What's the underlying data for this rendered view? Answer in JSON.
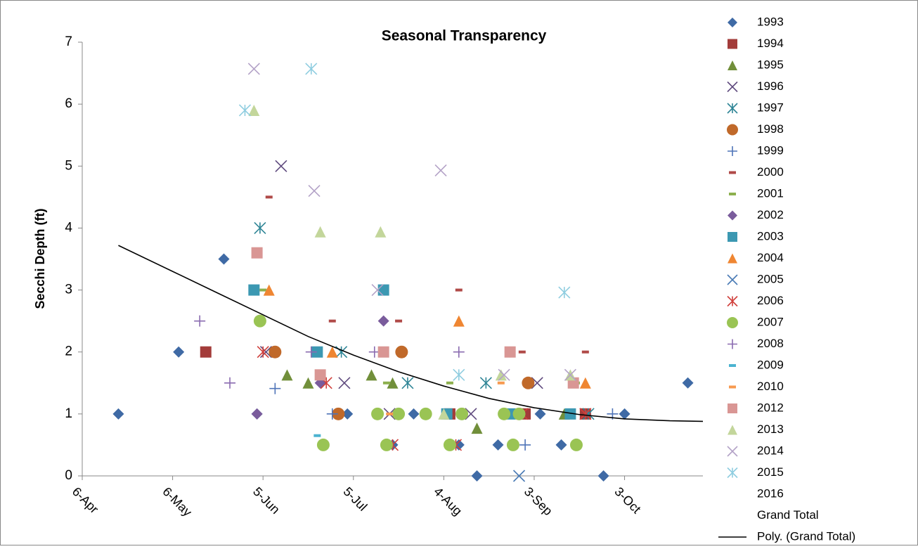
{
  "chart_data": {
    "type": "scatter",
    "title": "Seasonal Transparency",
    "y_label": "Secchi Depth (ft)",
    "xlim": [
      96,
      302
    ],
    "xticks": [
      {
        "value": 96,
        "label": "6-Apr"
      },
      {
        "value": 126,
        "label": "6-May"
      },
      {
        "value": 156,
        "label": "5-Jun"
      },
      {
        "value": 186,
        "label": "5-Jul"
      },
      {
        "value": 216,
        "label": "4-Aug"
      },
      {
        "value": 246,
        "label": "3-Sep"
      },
      {
        "value": 276,
        "label": "3-Oct"
      }
    ],
    "ylim": [
      0,
      7
    ],
    "yticks": [
      0,
      1,
      2,
      3,
      4,
      5,
      6,
      7
    ],
    "series": [
      {
        "name": "1993",
        "color": "#3f6aa5",
        "marker": "diamond",
        "x": [
          108,
          128,
          143,
          154,
          184,
          199,
          206,
          221,
          227,
          234,
          248,
          255,
          269,
          276,
          297
        ],
        "y": [
          1,
          2,
          3.5,
          1,
          1,
          0.5,
          1,
          0.5,
          0,
          0.5,
          1,
          0.5,
          0,
          1,
          1.5
        ]
      },
      {
        "name": "1994",
        "color": "#a33c3a",
        "marker": "square",
        "x": [
          137,
          218,
          243,
          263
        ],
        "y": [
          2,
          1,
          1,
          1
        ]
      },
      {
        "name": "1995",
        "color": "#718f3a",
        "marker": "triangle",
        "x": [
          164,
          171,
          192,
          199,
          227,
          256
        ],
        "y": [
          1.63,
          1.5,
          1.63,
          1.5,
          0.77,
          1
        ]
      },
      {
        "name": "1996",
        "color": "#5f4a7e",
        "marker": "x",
        "x": [
          157,
          162,
          183,
          198,
          225,
          247
        ],
        "y": [
          2,
          5,
          1.5,
          1,
          1,
          1.5
        ]
      },
      {
        "name": "1997",
        "color": "#2f8596",
        "marker": "asterisk",
        "x": [
          155,
          182,
          204,
          230,
          264
        ],
        "y": [
          4,
          2,
          1.5,
          1.5,
          1
        ]
      },
      {
        "name": "1998",
        "color": "#c0692a",
        "marker": "circle",
        "x": [
          160,
          181,
          202,
          244
        ],
        "y": [
          2,
          1,
          2,
          1.5
        ]
      },
      {
        "name": "1999",
        "color": "#4f74b8",
        "marker": "plus",
        "x": [
          160,
          179,
          243,
          272
        ],
        "y": [
          1.41,
          1,
          0.5,
          1
        ]
      },
      {
        "name": "2000",
        "color": "#b04a48",
        "marker": "dash",
        "x": [
          158,
          179,
          201,
          221,
          242,
          263
        ],
        "y": [
          4.5,
          2.5,
          2.5,
          3,
          2,
          2
        ]
      },
      {
        "name": "2001",
        "color": "#8db04e",
        "marker": "dash",
        "x": [
          156,
          197,
          218,
          260
        ],
        "y": [
          3,
          1.5,
          1.5,
          1.5
        ]
      },
      {
        "name": "2002",
        "color": "#7a5c9c",
        "marker": "diamond",
        "x": [
          154,
          175,
          196,
          238
        ],
        "y": [
          1,
          1.5,
          2.5,
          2
        ]
      },
      {
        "name": "2003",
        "color": "#3c98b2",
        "marker": "square",
        "x": [
          153,
          174,
          196,
          217,
          238,
          258
        ],
        "y": [
          3,
          2,
          3,
          1,
          1,
          1
        ]
      },
      {
        "name": "2004",
        "color": "#ef8632",
        "marker": "triangle",
        "x": [
          158,
          179,
          221,
          263
        ],
        "y": [
          3,
          2,
          2.5,
          1.5
        ]
      },
      {
        "name": "2005",
        "color": "#4a7bb5",
        "marker": "x",
        "x": [
          241
        ],
        "y": [
          0
        ]
      },
      {
        "name": "2006",
        "color": "#d0403c",
        "marker": "asterisk",
        "x": [
          156,
          177,
          199,
          220,
          242,
          263
        ],
        "y": [
          2,
          1.5,
          0.5,
          0.5,
          1,
          1
        ]
      },
      {
        "name": "2007",
        "color": "#9ac454",
        "marker": "circle",
        "x": [
          155,
          176,
          194,
          197,
          201,
          210,
          218,
          222,
          236,
          239,
          241,
          260
        ],
        "y": [
          2.5,
          0.5,
          1,
          0.5,
          1,
          1,
          0.5,
          1,
          1,
          0.5,
          1,
          0.5
        ]
      },
      {
        "name": "2008",
        "color": "#8a6bb0",
        "marker": "plus",
        "x": [
          135,
          145,
          172,
          193,
          221
        ],
        "y": [
          2.5,
          1.5,
          2,
          2,
          2
        ]
      },
      {
        "name": "2009",
        "color": "#4bb3d0",
        "marker": "dash",
        "x": [
          174
        ],
        "y": [
          0.65
        ]
      },
      {
        "name": "2010",
        "color": "#f79a50",
        "marker": "dash",
        "x": [
          198,
          235
        ],
        "y": [
          1,
          1.5
        ]
      },
      {
        "name": "2012",
        "color": "#d99694",
        "marker": "square",
        "x": [
          154,
          175,
          196,
          238,
          259
        ],
        "y": [
          3.6,
          1.63,
          2,
          2,
          1.5
        ]
      },
      {
        "name": "2013",
        "color": "#c3d69b",
        "marker": "triangle",
        "x": [
          153,
          175,
          195,
          216,
          235,
          258
        ],
        "y": [
          5.9,
          3.94,
          3.94,
          1,
          1.63,
          1.63
        ]
      },
      {
        "name": "2014",
        "color": "#b3a2c7",
        "marker": "x",
        "x": [
          153,
          173,
          194,
          215,
          236,
          258
        ],
        "y": [
          6.57,
          4.6,
          3,
          4.93,
          1.63,
          1.63
        ]
      },
      {
        "name": "2015",
        "color": "#8fcde0",
        "marker": "asterisk",
        "x": [
          150,
          172,
          221,
          256
        ],
        "y": [
          5.9,
          6.57,
          1.63,
          2.96
        ]
      },
      {
        "name": "2016",
        "color": "#7f7f7f",
        "marker": "none",
        "x": [],
        "y": []
      },
      {
        "name": "Grand Total",
        "color": "#7f7f7f",
        "marker": "none",
        "x": [],
        "y": []
      },
      {
        "name": "Poly. (Grand Total)",
        "color": "#000000",
        "marker": "line",
        "x": [
          108,
          126,
          141,
          156,
          171,
          186,
          201,
          216,
          231,
          246,
          261,
          276,
          291,
          302
        ],
        "y": [
          3.72,
          3.3,
          2.95,
          2.6,
          2.25,
          1.95,
          1.68,
          1.45,
          1.25,
          1.1,
          0.99,
          0.92,
          0.89,
          0.88
        ]
      }
    ]
  }
}
